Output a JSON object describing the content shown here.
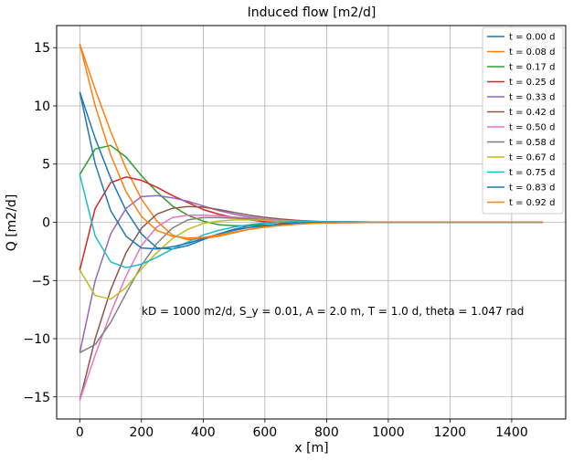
{
  "chart_data": {
    "type": "line",
    "title": "Induced flow [m2/d]",
    "xlabel": "x [m]",
    "ylabel": "Q [m2/d]",
    "xlim": [
      -75,
      1575
    ],
    "ylim": [
      -16.9,
      16.9
    ],
    "xticks": [
      0,
      200,
      400,
      600,
      800,
      1000,
      1200,
      1400
    ],
    "xtick_labels": [
      "0",
      "200",
      "400",
      "600",
      "800",
      "1000",
      "1200",
      "1400"
    ],
    "yticks": [
      -15,
      -10,
      -5,
      0,
      5,
      10,
      15
    ],
    "ytick_labels": [
      "−15",
      "−10",
      "−5",
      "0",
      "5",
      "10",
      "15"
    ],
    "grid": true,
    "legend_position": "top-right",
    "annotation": "kD = 1000 m2/d, S_y = 0.01, A = 2.0 m, T = 1.0 d, theta = 1.047 rad",
    "x": [
      0,
      50,
      100,
      150,
      200,
      250,
      300,
      350,
      400,
      450,
      500,
      550,
      600,
      650,
      700,
      750,
      800,
      850,
      900,
      950,
      1000,
      1050,
      1100,
      1150,
      1200,
      1250,
      1300,
      1350,
      1400,
      1450,
      1500
    ],
    "series": [
      {
        "name": "t = 0.00 d",
        "color": "#1f77b4",
        "values": [
          11.2,
          7.2,
          3.8,
          1.0,
          -1.0,
          -2.2,
          -2.3,
          -2.0,
          -1.5,
          -1.0,
          -0.6,
          -0.3,
          -0.1,
          0.0,
          0.05,
          0.07,
          0.06,
          0.05,
          0.03,
          0.02,
          0.01,
          0.0,
          0.0,
          0.0,
          0.0,
          0.0,
          0.0,
          0.0,
          0.0,
          0.0,
          0.0
        ]
      },
      {
        "name": "t = 0.08 d",
        "color": "#ff7f0e",
        "values": [
          15.3,
          11.4,
          7.8,
          4.6,
          2.0,
          0.1,
          -1.1,
          -1.5,
          -1.4,
          -1.2,
          -0.9,
          -0.6,
          -0.35,
          -0.15,
          -0.02,
          0.04,
          0.06,
          0.05,
          0.04,
          0.02,
          0.01,
          0.0,
          0.0,
          0.0,
          0.0,
          0.0,
          0.0,
          0.0,
          0.0,
          0.0,
          0.0
        ]
      },
      {
        "name": "t = 0.17 d",
        "color": "#2ca02c",
        "values": [
          4.1,
          6.3,
          6.6,
          5.6,
          4.0,
          2.6,
          1.4,
          0.6,
          0.1,
          -0.2,
          -0.3,
          -0.3,
          -0.25,
          -0.18,
          -0.1,
          -0.05,
          0.0,
          0.02,
          0.02,
          0.02,
          0.01,
          0.0,
          0.0,
          0.0,
          0.0,
          0.0,
          0.0,
          0.0,
          0.0,
          0.0,
          0.0
        ]
      },
      {
        "name": "t = 0.25 d",
        "color": "#d62728",
        "values": [
          -4.1,
          1.2,
          3.4,
          3.9,
          3.6,
          3.0,
          2.3,
          1.7,
          1.1,
          0.7,
          0.4,
          0.2,
          0.05,
          -0.02,
          -0.05,
          -0.06,
          -0.05,
          -0.04,
          -0.03,
          -0.01,
          0.0,
          0.0,
          0.0,
          0.0,
          0.0,
          0.0,
          0.0,
          0.0,
          0.0,
          0.0,
          0.0
        ]
      },
      {
        "name": "t = 0.33 d",
        "color": "#9467bd",
        "values": [
          -11.2,
          -5.0,
          -1.0,
          1.2,
          2.2,
          2.3,
          2.1,
          1.8,
          1.4,
          1.0,
          0.7,
          0.45,
          0.28,
          0.15,
          0.07,
          0.03,
          0.01,
          0.0,
          0.0,
          0.0,
          0.0,
          0.0,
          0.0,
          0.0,
          0.0,
          0.0,
          0.0,
          0.0,
          0.0,
          0.0,
          0.0
        ]
      },
      {
        "name": "t = 0.42 d",
        "color": "#8c564b",
        "values": [
          -15.3,
          -10.0,
          -5.8,
          -2.6,
          -0.5,
          0.7,
          1.2,
          1.35,
          1.3,
          1.1,
          0.85,
          0.6,
          0.42,
          0.28,
          0.17,
          0.1,
          0.05,
          0.02,
          0.01,
          0.0,
          0.0,
          0.0,
          0.0,
          0.0,
          0.0,
          0.0,
          0.0,
          0.0,
          0.0,
          0.0,
          0.0
        ]
      },
      {
        "name": "t = 0.50 d",
        "color": "#e377c2",
        "values": [
          -15.3,
          -11.4,
          -7.8,
          -4.6,
          -2.0,
          -0.4,
          0.4,
          0.6,
          0.6,
          0.55,
          0.45,
          0.35,
          0.25,
          0.17,
          0.1,
          0.06,
          0.03,
          0.01,
          0.0,
          0.0,
          0.0,
          0.0,
          0.0,
          0.0,
          0.0,
          0.0,
          0.0,
          0.0,
          0.0,
          0.0,
          0.0
        ]
      },
      {
        "name": "t = 0.58 d",
        "color": "#7f7f7f",
        "values": [
          -11.2,
          -10.5,
          -8.6,
          -6.1,
          -3.7,
          -1.8,
          -0.5,
          0.2,
          0.4,
          0.4,
          0.35,
          0.28,
          0.2,
          0.13,
          0.08,
          0.04,
          0.02,
          0.01,
          0.0,
          0.0,
          0.0,
          0.0,
          0.0,
          0.0,
          0.0,
          0.0,
          0.0,
          0.0,
          0.0,
          0.0,
          0.0
        ]
      },
      {
        "name": "t = 0.67 d",
        "color": "#bcbd22",
        "values": [
          -4.1,
          -6.3,
          -6.6,
          -5.6,
          -4.0,
          -2.6,
          -1.4,
          -0.6,
          -0.1,
          0.1,
          0.2,
          0.2,
          0.17,
          0.12,
          0.08,
          0.05,
          0.02,
          0.01,
          0.0,
          0.0,
          0.0,
          0.0,
          0.0,
          0.0,
          0.0,
          0.0,
          0.0,
          0.0,
          0.0,
          0.0,
          0.0
        ]
      },
      {
        "name": "t = 0.75 d",
        "color": "#17becf",
        "values": [
          4.1,
          -1.2,
          -3.4,
          -3.9,
          -3.6,
          -3.0,
          -2.3,
          -1.7,
          -1.1,
          -0.7,
          -0.4,
          -0.2,
          -0.05,
          0.02,
          0.05,
          0.06,
          0.05,
          0.04,
          0.03,
          0.01,
          0.0,
          0.0,
          0.0,
          0.0,
          0.0,
          0.0,
          0.0,
          0.0,
          0.0,
          0.0,
          0.0
        ]
      },
      {
        "name": "t = 0.83 d",
        "color": "#1f77b4",
        "values": [
          11.2,
          5.0,
          1.0,
          -1.2,
          -2.2,
          -2.3,
          -2.1,
          -1.8,
          -1.4,
          -1.0,
          -0.7,
          -0.45,
          -0.28,
          -0.15,
          -0.07,
          -0.03,
          -0.01,
          0.0,
          0.0,
          0.0,
          0.0,
          0.0,
          0.0,
          0.0,
          0.0,
          0.0,
          0.0,
          0.0,
          0.0,
          0.0,
          0.0
        ]
      },
      {
        "name": "t = 0.92 d",
        "color": "#ff7f0e",
        "values": [
          15.3,
          10.0,
          5.8,
          2.6,
          0.5,
          -0.7,
          -1.2,
          -1.35,
          -1.3,
          -1.1,
          -0.85,
          -0.6,
          -0.42,
          -0.28,
          -0.17,
          -0.1,
          -0.05,
          -0.02,
          -0.01,
          0.0,
          0.0,
          0.0,
          0.0,
          0.0,
          0.0,
          0.0,
          0.0,
          0.0,
          0.0,
          0.0,
          0.0
        ]
      }
    ]
  }
}
